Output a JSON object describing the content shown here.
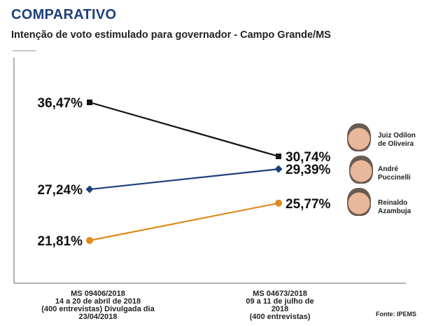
{
  "title": "COMPARATIVO",
  "subtitle": "Intenção de voto estimulado para governador - Campo Grande/MS",
  "source": "Fonte: IPEMS",
  "periods": [
    {
      "lines": [
        "MS 09406/2018",
        "14 a 20 de abril de 2018",
        "(400 entrevistas) Divulgada dia 23/04/2018"
      ]
    },
    {
      "lines": [
        "MS 04673/2018",
        "09 a 11 de julho de 2018",
        "(400 entrevistas)"
      ]
    }
  ],
  "chart_data": {
    "type": "line",
    "categories": [
      "MS 09406/2018",
      "MS 04673/2018"
    ],
    "ylim": [
      15,
      40
    ],
    "grid": false,
    "series": [
      {
        "name": "Juiz Odilon de Oliveira",
        "values": [
          36.47,
          30.74
        ],
        "labels": [
          "36,47%",
          "30,74%"
        ],
        "color": "#111111",
        "marker": "square"
      },
      {
        "name": "André Puccinelli",
        "values": [
          27.24,
          29.39
        ],
        "labels": [
          "27,24%",
          "29,39%"
        ],
        "color": "#1d3f7a",
        "marker": "diamond"
      },
      {
        "name": "Reinaldo Azambuja",
        "values": [
          21.81,
          25.77
        ],
        "labels": [
          "21,81%",
          "25,77%"
        ],
        "color": "#e08a1e",
        "marker": "circle"
      }
    ]
  },
  "candidates": [
    {
      "line1": "Juiz Odilon",
      "line2": "de Oliveira"
    },
    {
      "line1": "André",
      "line2": "Puccinelli"
    },
    {
      "line1": "Reinaldo",
      "line2": "Azambuja"
    }
  ]
}
